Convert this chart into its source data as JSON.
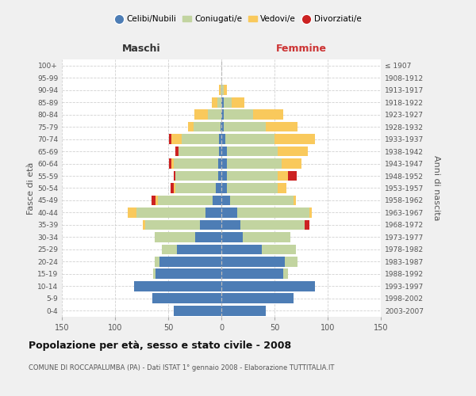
{
  "age_groups": [
    "0-4",
    "5-9",
    "10-14",
    "15-19",
    "20-24",
    "25-29",
    "30-34",
    "35-39",
    "40-44",
    "45-49",
    "50-54",
    "55-59",
    "60-64",
    "65-69",
    "70-74",
    "75-79",
    "80-84",
    "85-89",
    "90-94",
    "95-99",
    "100+"
  ],
  "birth_years": [
    "2003-2007",
    "1998-2002",
    "1993-1997",
    "1988-1992",
    "1983-1987",
    "1978-1982",
    "1973-1977",
    "1968-1972",
    "1963-1967",
    "1958-1962",
    "1953-1957",
    "1948-1952",
    "1943-1947",
    "1938-1942",
    "1933-1937",
    "1928-1932",
    "1923-1927",
    "1918-1922",
    "1913-1917",
    "1908-1912",
    "≤ 1907"
  ],
  "males": {
    "celibi": [
      45,
      65,
      82,
      62,
      58,
      42,
      25,
      20,
      15,
      8,
      5,
      3,
      3,
      2,
      2,
      1,
      0,
      0,
      0,
      0,
      0
    ],
    "coniugati": [
      0,
      0,
      0,
      2,
      5,
      14,
      38,
      52,
      65,
      52,
      38,
      40,
      42,
      38,
      35,
      25,
      13,
      4,
      1,
      0,
      0
    ],
    "vedovi": [
      0,
      0,
      0,
      0,
      0,
      0,
      0,
      2,
      8,
      2,
      2,
      0,
      2,
      0,
      10,
      5,
      12,
      5,
      1,
      0,
      0
    ],
    "divorziati": [
      0,
      0,
      0,
      0,
      0,
      0,
      0,
      0,
      0,
      4,
      3,
      2,
      2,
      3,
      2,
      0,
      0,
      0,
      0,
      0,
      0
    ]
  },
  "females": {
    "nubili": [
      42,
      68,
      88,
      58,
      60,
      38,
      20,
      18,
      15,
      8,
      5,
      5,
      5,
      5,
      4,
      2,
      2,
      2,
      0,
      0,
      0
    ],
    "coniugate": [
      0,
      0,
      0,
      5,
      12,
      32,
      45,
      60,
      68,
      60,
      48,
      48,
      52,
      48,
      46,
      40,
      28,
      8,
      2,
      0,
      0
    ],
    "vedove": [
      0,
      0,
      0,
      0,
      0,
      0,
      0,
      0,
      2,
      2,
      8,
      10,
      18,
      28,
      38,
      30,
      28,
      12,
      3,
      0,
      0
    ],
    "divorziate": [
      0,
      0,
      0,
      0,
      0,
      0,
      0,
      5,
      0,
      0,
      0,
      8,
      0,
      0,
      0,
      0,
      0,
      0,
      0,
      0,
      0
    ]
  },
  "colors": {
    "celibi_nubili": "#4d7db5",
    "coniugati": "#c2d4a0",
    "vedovi": "#f9c95c",
    "divorziati": "#cc2222"
  },
  "title": "Popolazione per età, sesso e stato civile - 2008",
  "subtitle": "COMUNE DI ROCCAPALUMBA (PA) - Dati ISTAT 1° gennaio 2008 - Elaborazione TUTTITALIA.IT",
  "label_maschi": "Maschi",
  "label_femmine": "Femmine",
  "ylabel_left": "Fasce di età",
  "ylabel_right": "Anni di nascita",
  "legend_labels": [
    "Celibi/Nubili",
    "Coniugati/e",
    "Vedovi/e",
    "Divorziati/e"
  ],
  "xlim": 150,
  "bg_color": "#f0f0f0",
  "plot_bg_color": "#ffffff",
  "grid_color": "#cccccc"
}
